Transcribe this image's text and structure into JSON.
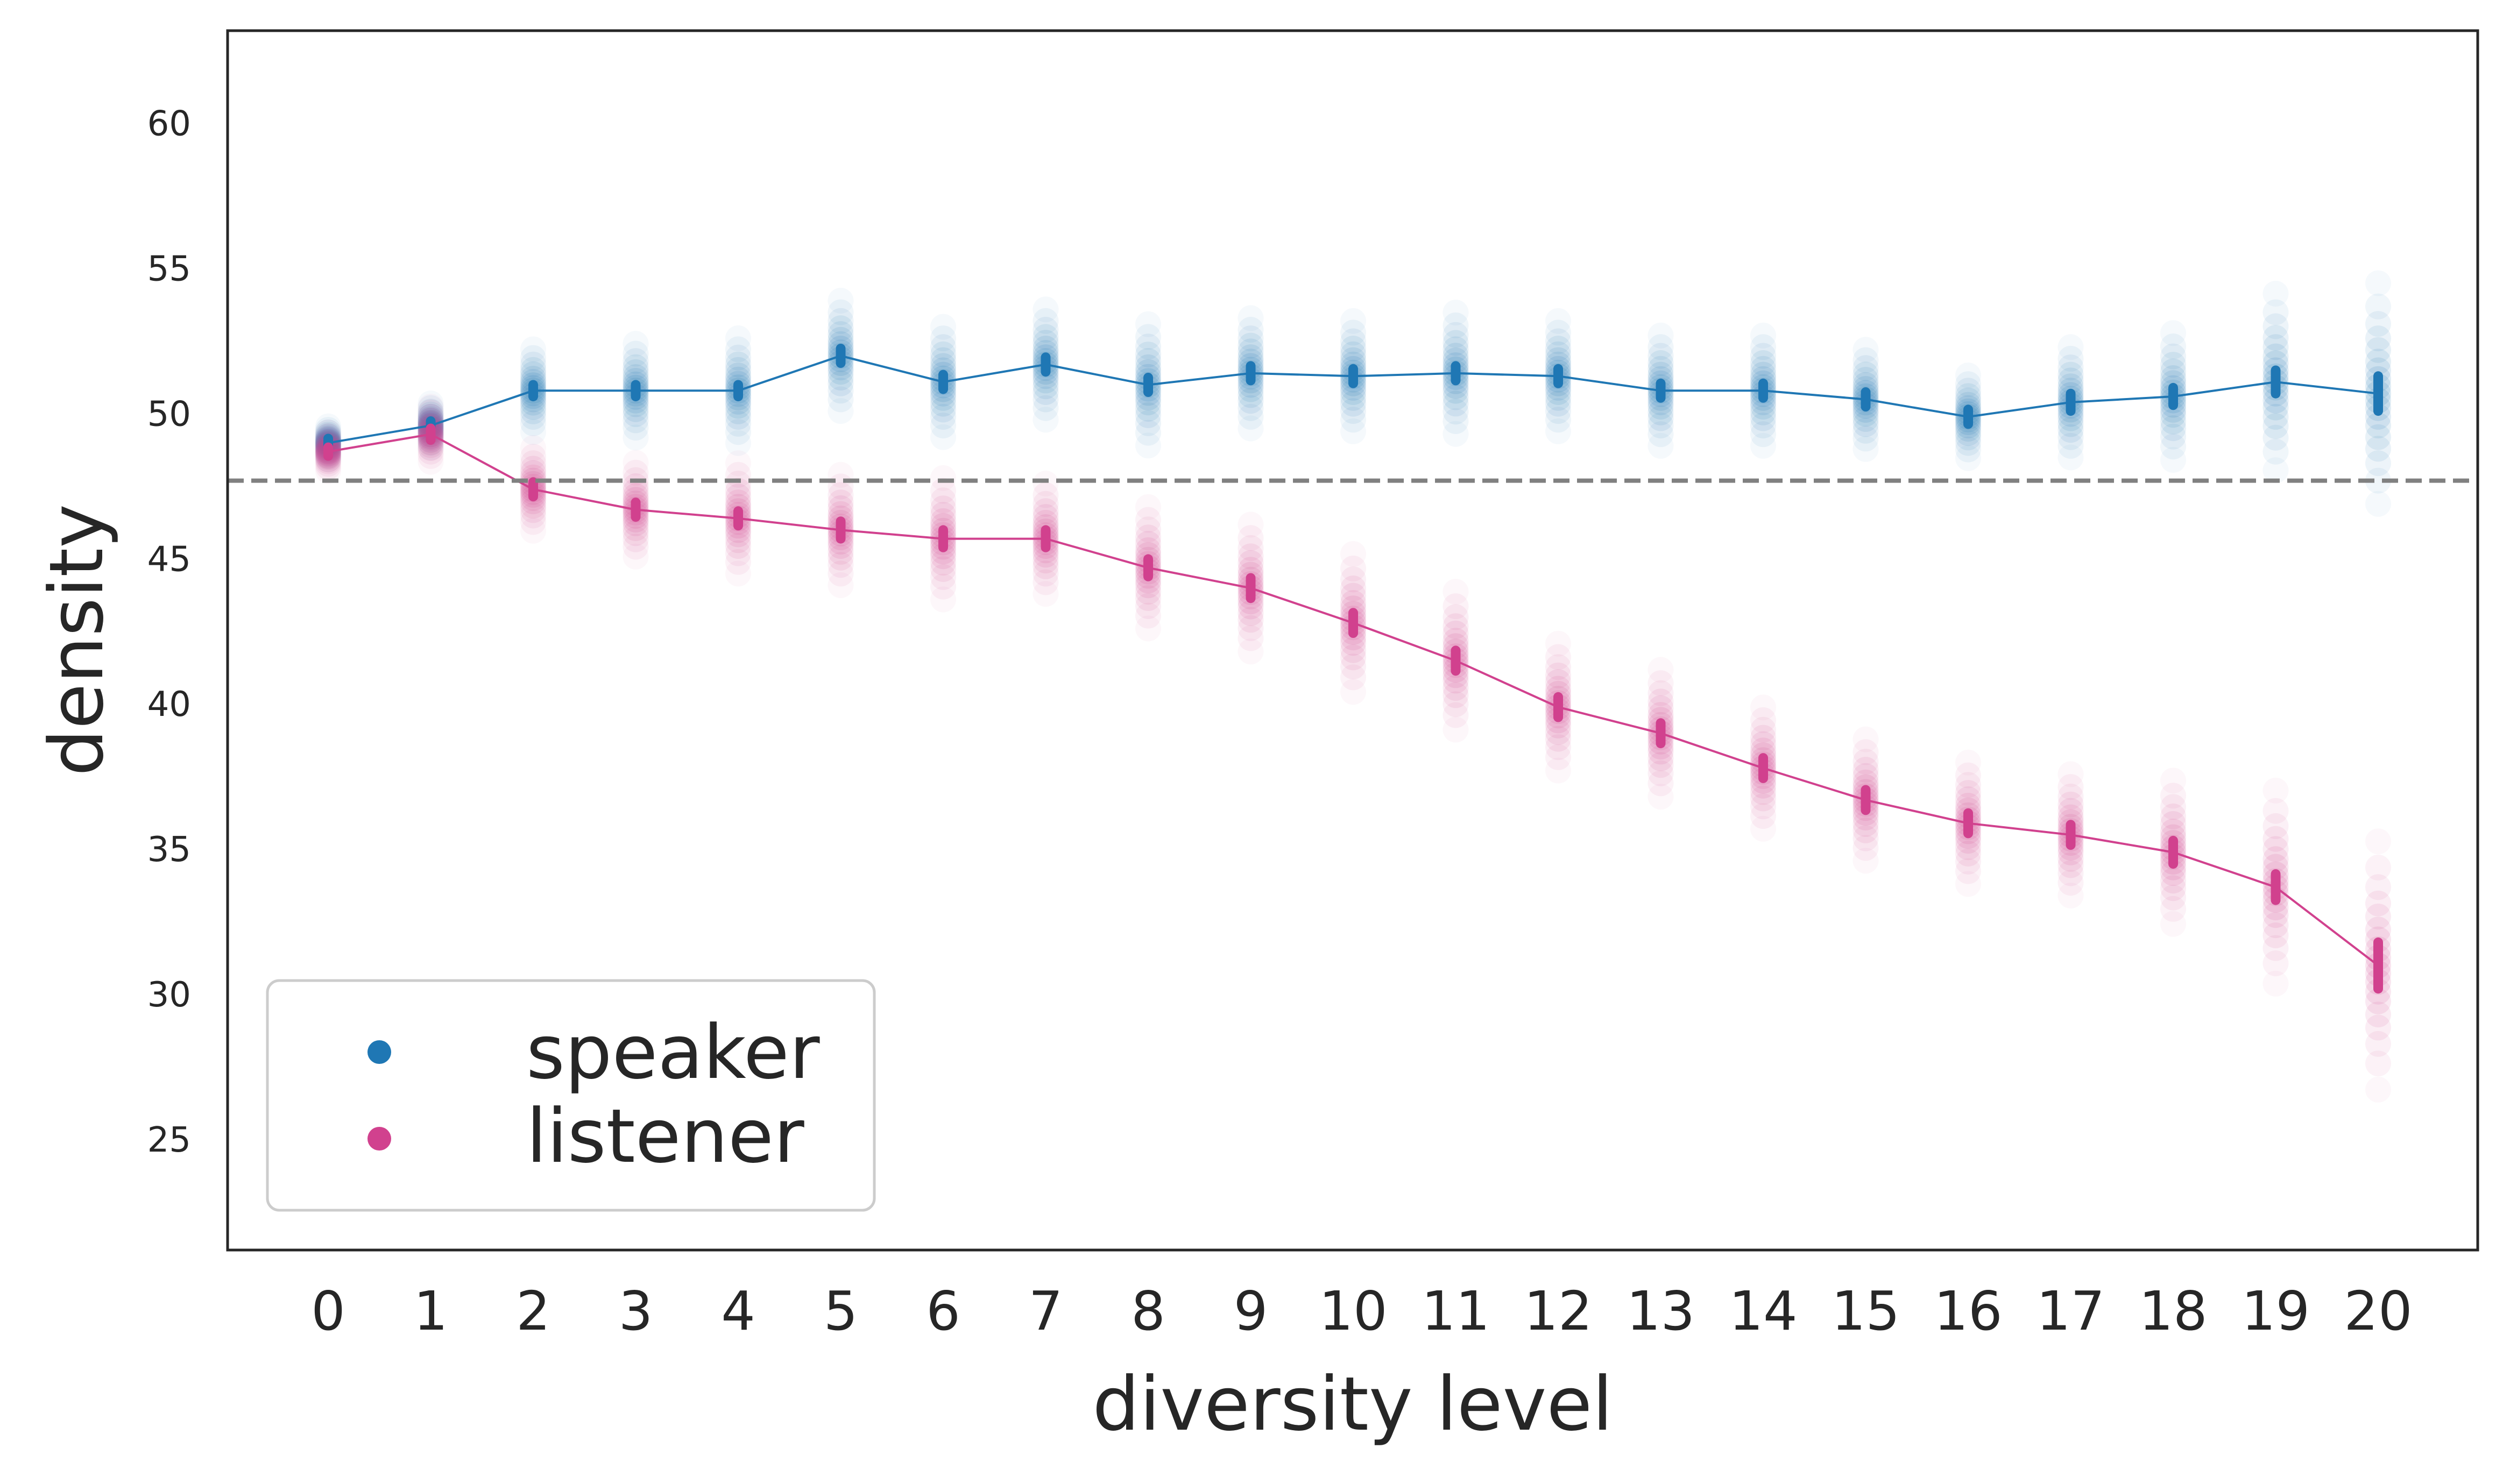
{
  "chart_data": {
    "type": "scatter",
    "xlabel": "diversity level",
    "ylabel": "density",
    "x": [
      0,
      1,
      2,
      3,
      4,
      5,
      6,
      7,
      8,
      9,
      10,
      11,
      12,
      13,
      14,
      15,
      16,
      17,
      18,
      19,
      20
    ],
    "ylim": [
      21.2,
      63.2
    ],
    "yticks": [
      25,
      30,
      35,
      40,
      45,
      50,
      55,
      60
    ],
    "reference_line": {
      "y": 47.7,
      "style": "dashed",
      "color": "#808080"
    },
    "grid": false,
    "legend_position": "lower-left",
    "series": [
      {
        "name": "speaker",
        "color": "#1f77b4",
        "means": [
          49.0,
          49.6,
          50.8,
          50.8,
          50.8,
          52.0,
          51.1,
          51.7,
          51.0,
          51.4,
          51.3,
          51.4,
          51.3,
          50.8,
          50.8,
          50.5,
          49.9,
          50.4,
          50.6,
          51.1,
          50.7
        ],
        "ci_half": [
          0.15,
          0.15,
          0.2,
          0.2,
          0.2,
          0.25,
          0.25,
          0.25,
          0.25,
          0.25,
          0.25,
          0.25,
          0.25,
          0.25,
          0.25,
          0.25,
          0.25,
          0.3,
          0.3,
          0.4,
          0.6
        ],
        "spread": [
          0.6,
          0.8,
          1.5,
          1.7,
          1.9,
          2.0,
          2.0,
          2.0,
          2.2,
          2.0,
          2.0,
          2.2,
          2.0,
          2.0,
          2.0,
          1.8,
          1.5,
          2.0,
          2.3,
          3.2,
          4.0
        ]
      },
      {
        "name": "listener",
        "color": "#d1418e",
        "means": [
          48.7,
          49.3,
          47.4,
          46.7,
          46.4,
          46.0,
          45.7,
          45.7,
          44.7,
          44.0,
          42.8,
          41.5,
          39.9,
          39.0,
          37.8,
          36.7,
          35.9,
          35.5,
          34.9,
          33.7,
          31.0
        ],
        "ci_half": [
          0.15,
          0.2,
          0.25,
          0.25,
          0.25,
          0.3,
          0.3,
          0.3,
          0.3,
          0.35,
          0.35,
          0.35,
          0.35,
          0.35,
          0.35,
          0.35,
          0.35,
          0.35,
          0.4,
          0.45,
          0.8
        ],
        "spread": [
          0.7,
          1.0,
          1.5,
          1.7,
          2.0,
          2.0,
          2.2,
          2.0,
          2.2,
          2.3,
          2.5,
          2.5,
          2.3,
          2.3,
          2.2,
          2.2,
          2.2,
          2.2,
          2.6,
          3.5,
          4.5
        ]
      }
    ]
  }
}
